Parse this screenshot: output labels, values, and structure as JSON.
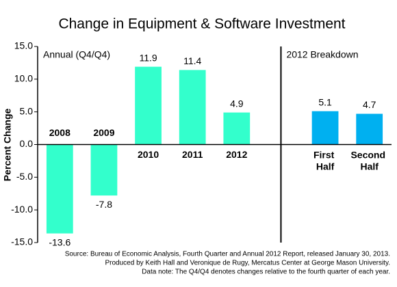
{
  "chart_data": {
    "type": "bar",
    "title": "Change in Equipment & Software Investment",
    "y_label": "Percent Change",
    "categories": [
      "2008",
      "2009",
      "2010",
      "2011",
      "2012",
      null,
      "First Half",
      "Second Half"
    ],
    "series": [
      {
        "name": "Annual (Q4/Q4)",
        "color": "#33ffcc",
        "values": [
          -13.6,
          -7.8,
          11.9,
          11.4,
          4.9,
          null,
          null,
          null
        ]
      },
      {
        "name": "2012 Breakdown",
        "color": "#00b0f0",
        "values": [
          null,
          null,
          null,
          null,
          null,
          null,
          5.1,
          4.7
        ]
      }
    ],
    "ylim": [
      -15,
      15
    ],
    "yticks": [
      {
        "value": -15,
        "label": "-15.0"
      },
      {
        "value": -10,
        "label": "-10.0"
      },
      {
        "value": -5,
        "label": "-5.0"
      },
      {
        "value": 0,
        "label": "0.0"
      },
      {
        "value": 5,
        "label": "5.0"
      },
      {
        "value": 10,
        "label": "10.0"
      },
      {
        "value": 15,
        "label": "15.0"
      }
    ],
    "grid": false,
    "source": [
      "Source: Bureau of Economic Analysis, Fourth Quarter and Annual 2012 Report, released January 30, 2013.",
      "Produced by Keith Hall and Veronique de Rugy, Mercatus Center at George Mason University.",
      "Data note: The Q4/Q4 denotes changes relative to the fourth quarter of each year."
    ]
  }
}
